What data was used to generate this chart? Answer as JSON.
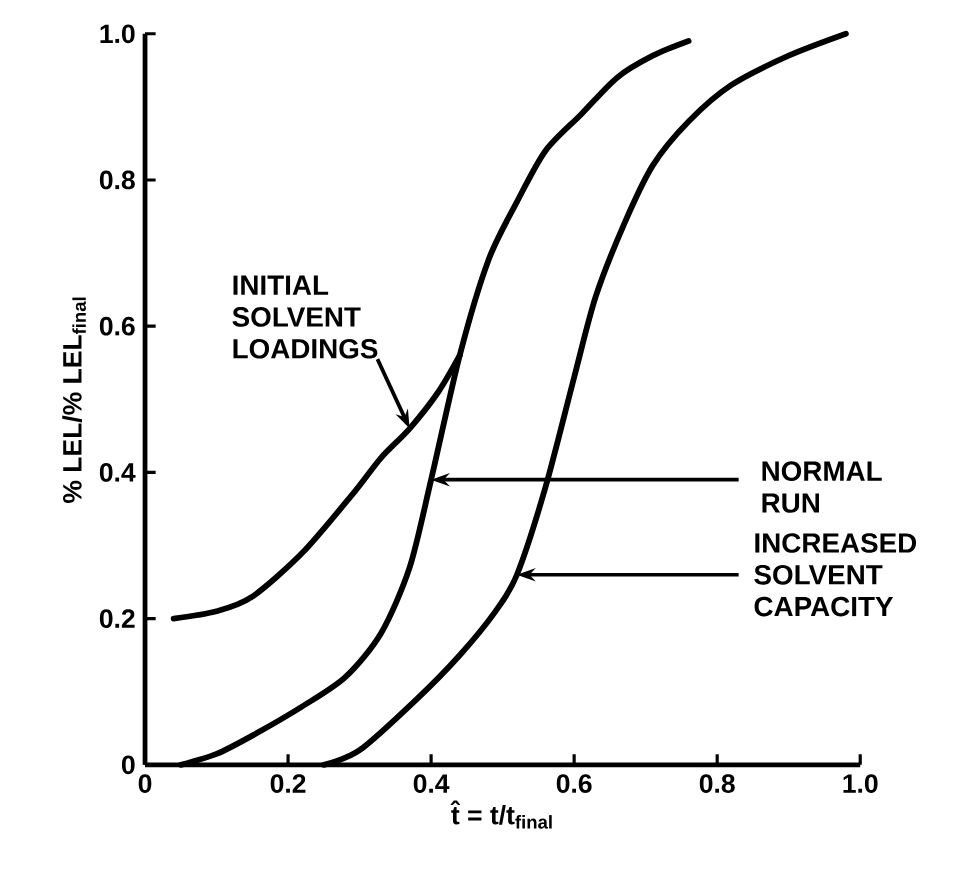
{
  "chart_data": {
    "type": "line",
    "xlabel": "t̂ = t/t$_{final}$",
    "ylabel": "% LEL/% LEL$_{final}$",
    "xlim": [
      0,
      1.0
    ],
    "ylim": [
      0,
      1.0
    ],
    "xticks": [
      {
        "value": 0,
        "label": "0"
      },
      0.2,
      0.4,
      0.6,
      0.8,
      {
        "value": 1.0,
        "label": "1.0"
      }
    ],
    "yticks": [
      {
        "value": 0,
        "label": "0"
      },
      0.2,
      0.4,
      0.6,
      0.8,
      {
        "value": 1.0,
        "label": "1.0"
      }
    ],
    "marker": "none",
    "line_style": "solid",
    "series": [
      {
        "color": "#000000",
        "x": [
          0.04,
          0.1,
          0.15,
          0.22,
          0.29,
          0.33,
          0.37,
          0.41,
          0.44
        ],
        "values": [
          0.2,
          0.21,
          0.23,
          0.29,
          0.37,
          0.42,
          0.46,
          0.51,
          0.56
        ]
      },
      {
        "color": "#000000",
        "x": [
          0.05,
          0.1,
          0.15,
          0.22,
          0.28,
          0.33,
          0.37,
          0.4,
          0.44,
          0.48,
          0.52,
          0.56,
          0.61,
          0.66,
          0.71,
          0.76
        ],
        "values": [
          0,
          0.015,
          0.04,
          0.08,
          0.12,
          0.18,
          0.27,
          0.39,
          0.56,
          0.69,
          0.77,
          0.84,
          0.89,
          0.94,
          0.97,
          0.99
        ]
      },
      {
        "color": "#000000",
        "x": [
          0.25,
          0.3,
          0.38,
          0.44,
          0.49,
          0.52,
          0.56,
          0.6,
          0.63,
          0.67,
          0.71,
          0.76,
          0.82,
          0.9,
          0.98
        ],
        "values": [
          0,
          0.02,
          0.09,
          0.15,
          0.21,
          0.26,
          0.38,
          0.53,
          0.64,
          0.74,
          0.82,
          0.88,
          0.93,
          0.97,
          1.0
        ]
      }
    ],
    "annotations": [
      {
        "text": "INITIAL SOLVENT LOADINGS",
        "x": 0.37,
        "y": 0.46
      },
      {
        "text": "NORMAL RUN",
        "x": 0.4,
        "y": 0.39
      },
      {
        "text": "INCREASED SOLVENT CAPACITY",
        "x": 0.52,
        "y": 0.26
      }
    ]
  }
}
